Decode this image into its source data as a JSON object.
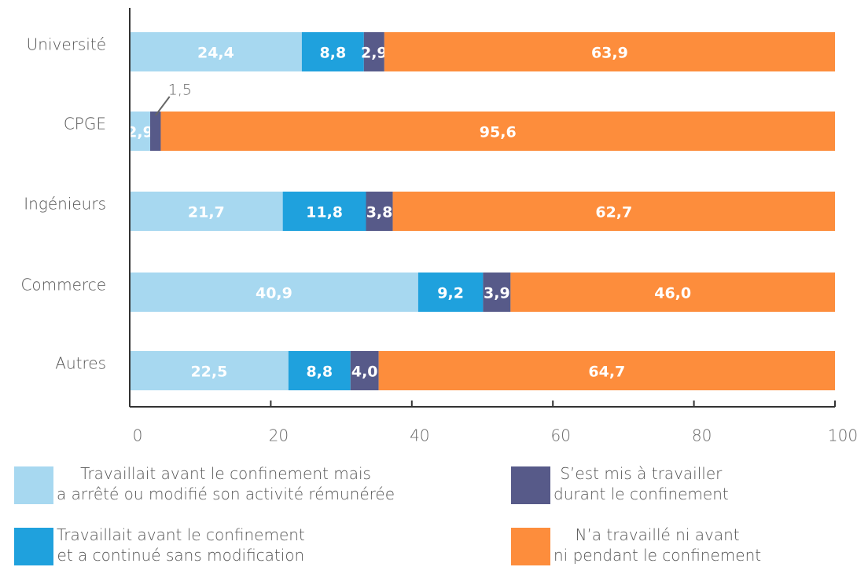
{
  "chart_data": {
    "type": "stacked-bar-horizontal",
    "categories": [
      "Université",
      "CPGE",
      "Ingénieurs",
      "Commerce",
      "Autres"
    ],
    "series": [
      {
        "name": "Travaillait avant le confinement mais\na arrêté ou modifié son activité rémunérée",
        "color": "#a7d8f0",
        "values": [
          24.4,
          2.9,
          21.7,
          40.9,
          22.5
        ],
        "value_labels": [
          "24,4",
          "2,9",
          "21,7",
          "40,9",
          "22,5"
        ]
      },
      {
        "name": "Travaillait avant le confinement\net a continué sans modification",
        "color": "#1fa1dd",
        "values": [
          8.8,
          null,
          11.8,
          9.2,
          8.8
        ],
        "value_labels": [
          "8,8",
          null,
          "11,8",
          "9,2",
          "8,8"
        ]
      },
      {
        "name": "S’est mis à travailler\ndurant le confinement",
        "color": "#575a89",
        "values": [
          2.9,
          1.5,
          3.8,
          3.9,
          4.0
        ],
        "value_labels": [
          "2,9",
          "1,5",
          "3,8",
          "3,9",
          "4,0"
        ]
      },
      {
        "name": "N’a travaillé ni avant\nni pendant le confinement",
        "color": "#fd8d3c",
        "values": [
          63.9,
          95.6,
          62.7,
          46.0,
          64.7
        ],
        "value_labels": [
          "63,9",
          "95,6",
          "62,7",
          "46,0",
          "64,7"
        ]
      }
    ],
    "xlim": [
      0,
      100
    ],
    "xticks": [
      0,
      20,
      40,
      60,
      80,
      100
    ]
  }
}
